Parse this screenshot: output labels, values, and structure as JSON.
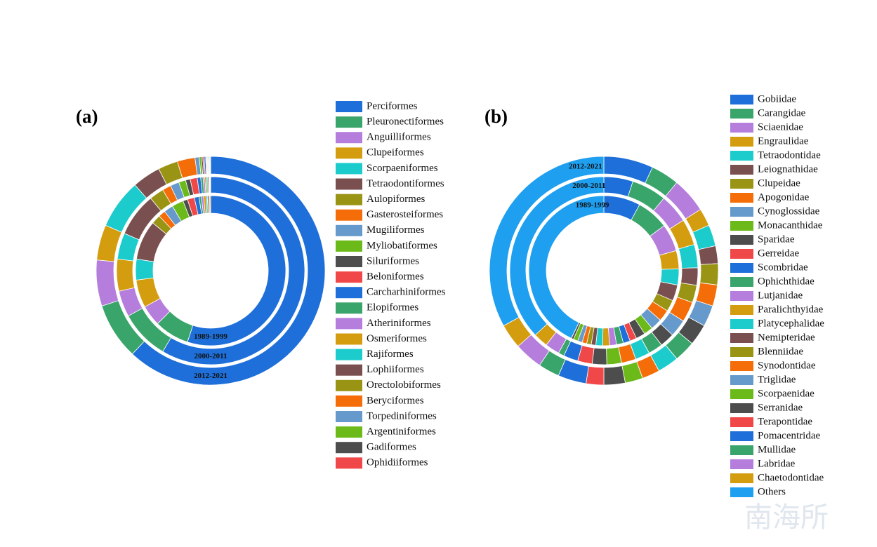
{
  "chart_data": [
    {
      "type": "donut",
      "title": "(a)",
      "categories": [
        "Perciformes",
        "Pleuronectiformes",
        "Anguilliformes",
        "Clupeiformes",
        "Scorpaeniformes",
        "Tetraodontiformes",
        "Aulopiformes",
        "Gasterosteiformes",
        "Mugiliformes",
        "Myliobatiformes",
        "Siluriformes",
        "Beloniformes",
        "Carcharhiniformes",
        "Elopiformes",
        "Atheriniformes",
        "Osmeriformes",
        "Rajiformes",
        "Lophiiformes",
        "Orectolobiformes",
        "Beryciformes",
        "Torpediniformes",
        "Argentiniformes",
        "Gadiformes",
        "Ophidiiformes"
      ],
      "colors": [
        "#1e6fd9",
        "#3aa56b",
        "#b57edc",
        "#d49d0f",
        "#1ccccc",
        "#7a4f4f",
        "#9a9414",
        "#f46d08",
        "#6699cc",
        "#6cba1a",
        "#4d4d4d",
        "#f04848",
        "#1e6fd9",
        "#3aa56b",
        "#b57edc",
        "#d49d0f",
        "#1ccccc",
        "#7a4f4f",
        "#9a9414",
        "#f46d08",
        "#6699cc",
        "#6cba1a",
        "#4d4d4d",
        "#f04848"
      ],
      "series": [
        {
          "name": "1989-1999",
          "values": [
            55,
            7.5,
            4.5,
            6,
            4.5,
            8.5,
            2,
            1.5,
            2,
            2.5,
            1,
            1.5,
            1,
            0.5,
            0.5,
            0.5,
            0.3,
            0.3,
            0.2,
            0.2,
            0,
            0,
            0,
            0
          ]
        },
        {
          "name": "2000-2011",
          "values": [
            58.5,
            8.5,
            4.5,
            5.5,
            4.5,
            7.5,
            2.5,
            1.5,
            1.5,
            1.2,
            0.8,
            1.2,
            0.6,
            0.4,
            0.3,
            0.3,
            0.2,
            0.2,
            0.1,
            0.1,
            0.1,
            0,
            0,
            0
          ]
        },
        {
          "name": "2012-2021",
          "values": [
            62,
            8,
            6.5,
            5,
            7,
            4,
            2.8,
            2.5,
            0.6,
            0.3,
            0.2,
            0.2,
            0.2,
            0.1,
            0.1,
            0.1,
            0.1,
            0.1,
            0.1,
            0.1,
            0,
            0,
            0,
            0
          ]
        }
      ]
    },
    {
      "type": "donut",
      "title": "(b)",
      "categories": [
        "Gobiidae",
        "Carangidae",
        "Sciaenidae",
        "Engraulidae",
        "Tetraodontidae",
        "Leiognathidae",
        "Clupeidae",
        "Apogonidae",
        "Cynoglossidae",
        "Monacanthidae",
        "Sparidae",
        "Gerreidae",
        "Scombridae",
        "Ophichthidae",
        "Lutjanidae",
        "Paralichthyidae",
        "Platycephalidae",
        "Nemipteridae",
        "Blenniidae",
        "Synodontidae",
        "Triglidae",
        "Scorpaenidae",
        "Serranidae",
        "Terapontidae",
        "Pomacentridae",
        "Mullidae",
        "Labridae",
        "Chaetodontidae",
        "Others"
      ],
      "colors": [
        "#1e6fd9",
        "#3aa56b",
        "#b57edc",
        "#d49d0f",
        "#1ccccc",
        "#7a4f4f",
        "#9a9414",
        "#f46d08",
        "#6699cc",
        "#6cba1a",
        "#4d4d4d",
        "#f04848",
        "#1e6fd9",
        "#3aa56b",
        "#b57edc",
        "#d49d0f",
        "#1ccccc",
        "#7a4f4f",
        "#9a9414",
        "#f46d08",
        "#6699cc",
        "#6cba1a",
        "#4d4d4d",
        "#f04848",
        "#1e6fd9",
        "#3aa56b",
        "#b57edc",
        "#d49d0f",
        "#1e9ff0"
      ],
      "series": [
        {
          "name": "1989-1999",
          "values": [
            8,
            7,
            6,
            4,
            3.5,
            3.5,
            2.5,
            2.5,
            2.5,
            2,
            2,
            1.5,
            1.5,
            1.5,
            1.5,
            1.5,
            1.5,
            1,
            1,
            1,
            1,
            1,
            0.5,
            0,
            0,
            0,
            0,
            0,
            43.5
          ]
        },
        {
          "name": "2000-2011",
          "values": [
            5,
            6,
            5,
            4.5,
            4,
            3,
            3,
            3.5,
            3,
            0,
            2.5,
            0,
            0,
            2.5,
            0,
            0,
            2.5,
            0,
            0,
            2.5,
            0,
            2.5,
            2.5,
            2.5,
            2.5,
            1,
            2.5,
            2.5,
            37
          ]
        },
        {
          "name": "2012-2021",
          "values": [
            7,
            4,
            5,
            2.5,
            3,
            2.5,
            3,
            3,
            3,
            0,
            3,
            0,
            0,
            3,
            0,
            0,
            3,
            0,
            0,
            2.5,
            0,
            2.5,
            3,
            2.5,
            4,
            3,
            4,
            3.5,
            33
          ]
        }
      ]
    }
  ],
  "watermark": "南海所"
}
